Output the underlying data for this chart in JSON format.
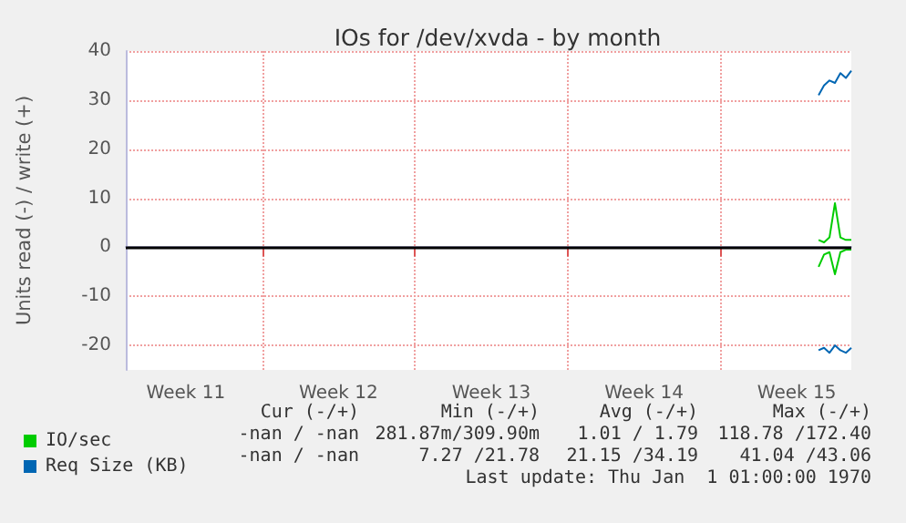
{
  "chart_data": {
    "type": "line",
    "title": "IOs for /dev/xvda - by month",
    "ylabel": "Units read (-) / write (+)",
    "categories": [
      null,
      null,
      null,
      null,
      null,
      null,
      null,
      null,
      null,
      null,
      null,
      "Week 11",
      null,
      null,
      null,
      null,
      null,
      null,
      null,
      null,
      null,
      null,
      null,
      null,
      null,
      null,
      null,
      null,
      null,
      null,
      null,
      null,
      null,
      null,
      null,
      null,
      null,
      null,
      null,
      "Week 12",
      null,
      null,
      null,
      null,
      null,
      null,
      null,
      null,
      null,
      null,
      null,
      null,
      null,
      null,
      null,
      null,
      null,
      null,
      null,
      null,
      null,
      null,
      null,
      null,
      null,
      null,
      null,
      "Week 13",
      null,
      null,
      null,
      null,
      null,
      null,
      null,
      null,
      null,
      null,
      null,
      null,
      null,
      null,
      null,
      null,
      null,
      null,
      null,
      null,
      null,
      null,
      null,
      null,
      null,
      null,
      null,
      "Week 14",
      null,
      null,
      null,
      null,
      null,
      null,
      null,
      null,
      null,
      null,
      null,
      null,
      null,
      null,
      null,
      null,
      null,
      null,
      null,
      null,
      null,
      null,
      null,
      null,
      null,
      null,
      null,
      "Week 15",
      null,
      null,
      null,
      null,
      null,
      null,
      null,
      null,
      null,
      null
    ],
    "ylim": [
      -25,
      40
    ],
    "yticks": [
      -20,
      -10,
      0,
      10,
      20,
      30,
      40
    ],
    "series": [
      {
        "name": "IO/sec",
        "color": "#00cc00",
        "values": [
          null,
          null,
          null,
          null,
          null,
          null,
          null,
          null,
          null,
          null,
          null,
          null,
          null,
          null,
          null,
          null,
          null,
          null,
          null,
          null,
          null,
          null,
          null,
          null,
          null,
          null,
          null,
          null,
          null,
          null,
          null,
          null,
          null,
          null,
          null,
          null,
          null,
          null,
          null,
          null,
          null,
          null,
          null,
          null,
          null,
          null,
          null,
          null,
          null,
          null,
          null,
          null,
          null,
          null,
          null,
          null,
          null,
          null,
          null,
          null,
          null,
          null,
          null,
          null,
          null,
          null,
          null,
          null,
          null,
          null,
          null,
          null,
          null,
          null,
          null,
          null,
          null,
          null,
          null,
          null,
          null,
          null,
          null,
          null,
          null,
          null,
          null,
          null,
          null,
          null,
          null,
          null,
          null,
          null,
          null,
          null,
          null,
          null,
          null,
          null,
          null,
          null,
          null,
          null,
          null,
          null,
          null,
          null,
          null,
          null,
          null,
          null,
          null,
          null,
          null,
          null,
          null,
          null,
          null,
          null,
          null,
          null,
          null,
          null,
          null,
          null,
          null,
          1.5,
          1,
          2,
          9,
          2,
          1.5,
          1.5
        ]
      },
      {
        "color": "#00cc00",
        "values": [
          null,
          null,
          null,
          null,
          null,
          null,
          null,
          null,
          null,
          null,
          null,
          null,
          null,
          null,
          null,
          null,
          null,
          null,
          null,
          null,
          null,
          null,
          null,
          null,
          null,
          null,
          null,
          null,
          null,
          null,
          null,
          null,
          null,
          null,
          null,
          null,
          null,
          null,
          null,
          null,
          null,
          null,
          null,
          null,
          null,
          null,
          null,
          null,
          null,
          null,
          null,
          null,
          null,
          null,
          null,
          null,
          null,
          null,
          null,
          null,
          null,
          null,
          null,
          null,
          null,
          null,
          null,
          null,
          null,
          null,
          null,
          null,
          null,
          null,
          null,
          null,
          null,
          null,
          null,
          null,
          null,
          null,
          null,
          null,
          null,
          null,
          null,
          null,
          null,
          null,
          null,
          null,
          null,
          null,
          null,
          null,
          null,
          null,
          null,
          null,
          null,
          null,
          null,
          null,
          null,
          null,
          null,
          null,
          null,
          null,
          null,
          null,
          null,
          null,
          null,
          null,
          null,
          null,
          null,
          null,
          null,
          null,
          null,
          null,
          null,
          null,
          null,
          -4,
          -1.5,
          -1,
          -5.5,
          -1,
          -0.5,
          -0.5
        ]
      },
      {
        "name": "Req Size (KB)",
        "color": "#0066b3",
        "values": [
          null,
          null,
          null,
          null,
          null,
          null,
          null,
          null,
          null,
          null,
          null,
          null,
          null,
          null,
          null,
          null,
          null,
          null,
          null,
          null,
          null,
          null,
          null,
          null,
          null,
          null,
          null,
          null,
          null,
          null,
          null,
          null,
          null,
          null,
          null,
          null,
          null,
          null,
          null,
          null,
          null,
          null,
          null,
          null,
          null,
          null,
          null,
          null,
          null,
          null,
          null,
          null,
          null,
          null,
          null,
          null,
          null,
          null,
          null,
          null,
          null,
          null,
          null,
          null,
          null,
          null,
          null,
          null,
          null,
          null,
          null,
          null,
          null,
          null,
          null,
          null,
          null,
          null,
          null,
          null,
          null,
          null,
          null,
          null,
          null,
          null,
          null,
          null,
          null,
          null,
          null,
          null,
          null,
          null,
          null,
          null,
          null,
          null,
          null,
          null,
          null,
          null,
          null,
          null,
          null,
          null,
          null,
          null,
          null,
          null,
          null,
          null,
          null,
          null,
          null,
          null,
          null,
          null,
          null,
          null,
          null,
          null,
          null,
          null,
          null,
          null,
          null,
          31,
          33,
          34,
          33.5,
          35.5,
          34.5,
          36
        ]
      },
      {
        "color": "#0066b3",
        "values": [
          null,
          null,
          null,
          null,
          null,
          null,
          null,
          null,
          null,
          null,
          null,
          null,
          null,
          null,
          null,
          null,
          null,
          null,
          null,
          null,
          null,
          null,
          null,
          null,
          null,
          null,
          null,
          null,
          null,
          null,
          null,
          null,
          null,
          null,
          null,
          null,
          null,
          null,
          null,
          null,
          null,
          null,
          null,
          null,
          null,
          null,
          null,
          null,
          null,
          null,
          null,
          null,
          null,
          null,
          null,
          null,
          null,
          null,
          null,
          null,
          null,
          null,
          null,
          null,
          null,
          null,
          null,
          null,
          null,
          null,
          null,
          null,
          null,
          null,
          null,
          null,
          null,
          null,
          null,
          null,
          null,
          null,
          null,
          null,
          null,
          null,
          null,
          null,
          null,
          null,
          null,
          null,
          null,
          null,
          null,
          null,
          null,
          null,
          null,
          null,
          null,
          null,
          null,
          null,
          null,
          null,
          null,
          null,
          null,
          null,
          null,
          null,
          null,
          null,
          null,
          null,
          null,
          null,
          null,
          null,
          null,
          null,
          null,
          null,
          null,
          null,
          null,
          -21,
          -20.5,
          -21.5,
          -20,
          -21,
          -21.5,
          -20.5
        ]
      }
    ],
    "ref_lines": [
      {
        "axis": "y",
        "value": 0,
        "label": null,
        "color": "#000000"
      }
    ],
    "grid": true,
    "legend": "bottom left",
    "marker": "none",
    "line_style": "solid",
    "annotations": [
      "Cur (-/+)",
      "Min (-/+)",
      "Avg (-/+)",
      "Max (-/+)",
      "-nan / -nan",
      "281.87m/309.90m",
      "1.01 / 1.79",
      "118.78 /172.40",
      "-nan / -nan",
      "7.27 /21.78",
      "21.15 /34.19",
      "41.04 /43.06",
      "Last update: Thu Jan  1 01:00:00 1970"
    ]
  }
}
